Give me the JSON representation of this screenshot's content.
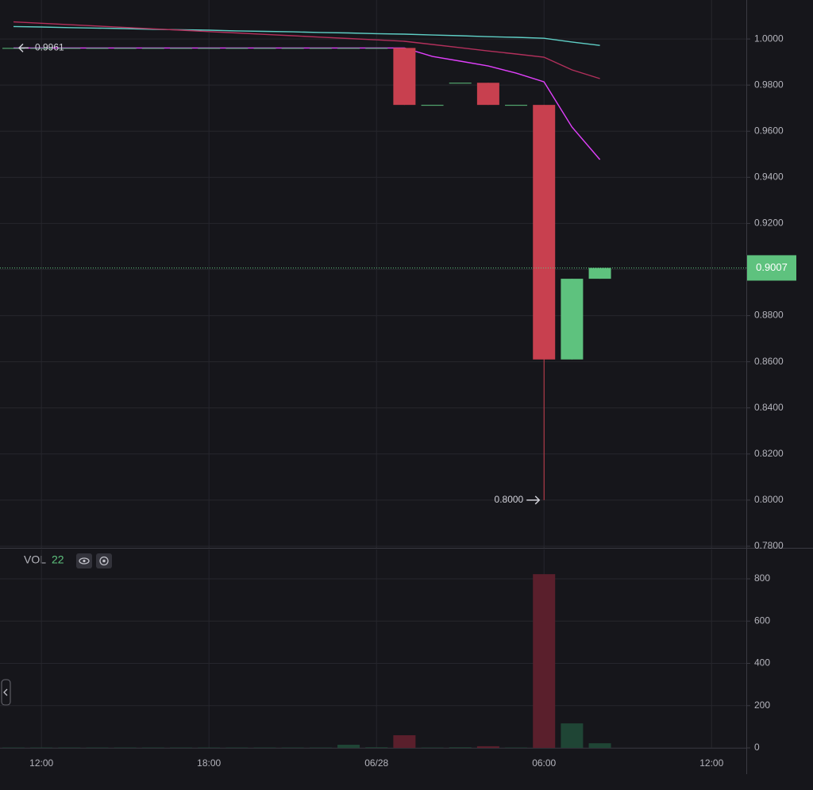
{
  "chart_data": [
    {
      "type": "candlestick",
      "categories": [
        null,
        "12:00",
        null,
        null,
        null,
        null,
        null,
        "18:00",
        null,
        null,
        null,
        null,
        null,
        "06/28",
        null,
        null,
        null,
        null,
        null,
        "06:00",
        null,
        null,
        null,
        null,
        null,
        "12:00",
        null
      ],
      "open": [
        0.9961,
        0.9961,
        0.9961,
        0.9961,
        0.9961,
        0.9961,
        0.9961,
        0.9961,
        0.9961,
        0.9961,
        0.9961,
        0.9961,
        0.9961,
        0.9961,
        0.9961,
        0.9714,
        0.981,
        0.981,
        0.9714,
        0.9714,
        0.861,
        0.896,
        null,
        null,
        null,
        null,
        null
      ],
      "high": [
        0.9961,
        0.9961,
        0.9961,
        0.9961,
        0.9961,
        0.9961,
        0.9961,
        0.9961,
        0.9961,
        0.9961,
        0.9961,
        0.9961,
        0.9961,
        0.9961,
        0.9961,
        0.9714,
        0.981,
        0.981,
        0.9714,
        0.9714,
        0.896,
        0.9007,
        null,
        null,
        null,
        null,
        null
      ],
      "low": [
        0.9961,
        0.9961,
        0.9961,
        0.9961,
        0.9961,
        0.9961,
        0.9961,
        0.9961,
        0.9961,
        0.9961,
        0.9961,
        0.9961,
        0.9961,
        0.9961,
        0.9714,
        0.9714,
        0.981,
        0.9714,
        0.9714,
        0.8,
        0.861,
        0.896,
        null,
        null,
        null,
        null,
        null
      ],
      "close": [
        0.9961,
        0.9961,
        0.9961,
        0.9961,
        0.9961,
        0.9961,
        0.9961,
        0.9961,
        0.9961,
        0.9961,
        0.9961,
        0.9961,
        0.9961,
        0.9961,
        0.9714,
        0.9714,
        0.981,
        0.9714,
        0.9714,
        0.861,
        0.896,
        0.9007,
        null,
        null,
        null,
        null,
        null
      ],
      "up_color": "#5ec27e",
      "down_color": "#c8404f",
      "series": [
        {
          "color": "#5fcfc6",
          "values": [
            1.0054,
            1.0052,
            1.0049,
            1.0047,
            1.0045,
            1.0042,
            1.004,
            1.0038,
            1.0035,
            1.0033,
            1.0031,
            1.0028,
            1.0026,
            1.0023,
            1.0021,
            1.0017,
            1.0014,
            1.001,
            1.0007,
            1.0003,
            0.9987,
            0.9972,
            null,
            null,
            null,
            null,
            null
          ]
        },
        {
          "color": "#b3305c",
          "values": [
            1.0074,
            1.0068,
            1.0062,
            1.0056,
            1.005,
            1.0044,
            1.0038,
            1.0032,
            1.0026,
            1.002,
            1.0014,
            1.0008,
            1.0002,
            0.9996,
            0.999,
            0.9976,
            0.9962,
            0.9948,
            0.9935,
            0.9921,
            0.9866,
            0.9828,
            null,
            null,
            null,
            null,
            null
          ]
        },
        {
          "color": "#e040fb",
          "values": [
            0.9961,
            0.9961,
            0.9961,
            0.9961,
            0.9961,
            0.9961,
            0.9961,
            0.9961,
            0.9961,
            0.9961,
            0.9961,
            0.9961,
            0.9961,
            0.9961,
            0.9961,
            0.9924,
            0.9904,
            0.9883,
            0.9852,
            0.9814,
            0.9618,
            0.9477,
            null,
            null,
            null,
            null,
            null
          ]
        }
      ],
      "ylim": [
        0.7793,
        1.0169
      ],
      "yticks": [
        {
          "value": 1,
          "label": "1.0000"
        },
        {
          "value": 0.98,
          "label": "0.9800"
        },
        {
          "value": 0.96,
          "label": "0.9600"
        },
        {
          "value": 0.94,
          "label": "0.9400"
        },
        {
          "value": 0.92,
          "label": "0.9200"
        },
        {
          "value": 0.9,
          "label": "0.9000"
        },
        {
          "value": 0.88,
          "label": "0.8800"
        },
        {
          "value": 0.86,
          "label": "0.8600"
        },
        {
          "value": 0.84,
          "label": "0.8400"
        },
        {
          "value": 0.82,
          "label": "0.8200"
        },
        {
          "value": 0.8,
          "label": "0.8000"
        },
        {
          "value": 0.78,
          "label": "0.7800"
        }
      ],
      "grid": true,
      "last_price_color": "#5ec27e",
      "annotations": {
        "high_label": "0.9961",
        "low_label": "0.8000"
      }
    },
    {
      "type": "bar",
      "title": "VOL",
      "values": [
        2,
        2,
        2,
        2,
        2,
        2,
        2,
        2,
        2,
        2,
        2,
        2,
        15,
        3,
        60,
        2,
        3,
        8,
        2,
        822,
        116,
        22,
        null,
        null,
        null,
        null,
        null
      ],
      "up_color": "#1f4535",
      "down_color": "#5a1f2c",
      "ylim": [
        0,
        939
      ],
      "yticks": [
        0,
        200,
        400,
        600,
        800
      ],
      "grid": true
    }
  ]
}
